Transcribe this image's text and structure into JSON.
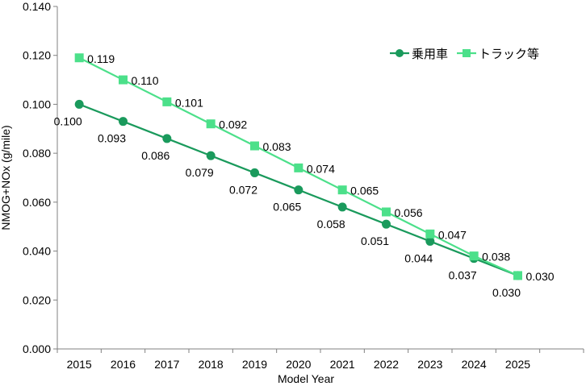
{
  "chart_data": {
    "type": "line",
    "title": "",
    "xlabel": "Model Year",
    "ylabel": "NMOG+NOx (g/mile)",
    "categories": [
      "2015",
      "2016",
      "2017",
      "2018",
      "2019",
      "2020",
      "2021",
      "2022",
      "2023",
      "2024",
      "2025"
    ],
    "ylim": [
      0,
      0.14
    ],
    "yticks": [
      "0.000",
      "0.020",
      "0.040",
      "0.060",
      "0.080",
      "0.100",
      "0.120",
      "0.140"
    ],
    "grid": false,
    "legend": "top-right",
    "series": [
      {
        "name": "乗用車",
        "marker": "circle",
        "color": "#1a9a5c",
        "values": [
          0.1,
          0.093,
          0.086,
          0.079,
          0.072,
          0.065,
          0.058,
          0.051,
          0.044,
          0.037,
          0.03
        ],
        "labels": [
          "0.100",
          "0.093",
          "0.086",
          "0.079",
          "0.072",
          "0.065",
          "0.058",
          "0.051",
          "0.044",
          "0.037",
          "0.030"
        ]
      },
      {
        "name": "トラック等",
        "marker": "square",
        "color": "#4ce08a",
        "values": [
          0.119,
          0.11,
          0.101,
          0.092,
          0.083,
          0.074,
          0.065,
          0.056,
          0.047,
          0.038,
          0.03
        ],
        "labels": [
          "0.119",
          "0.110",
          "0.101",
          "0.092",
          "0.083",
          "0.074",
          "0.065",
          "0.056",
          "0.047",
          "0.038",
          "0.030"
        ]
      }
    ]
  }
}
